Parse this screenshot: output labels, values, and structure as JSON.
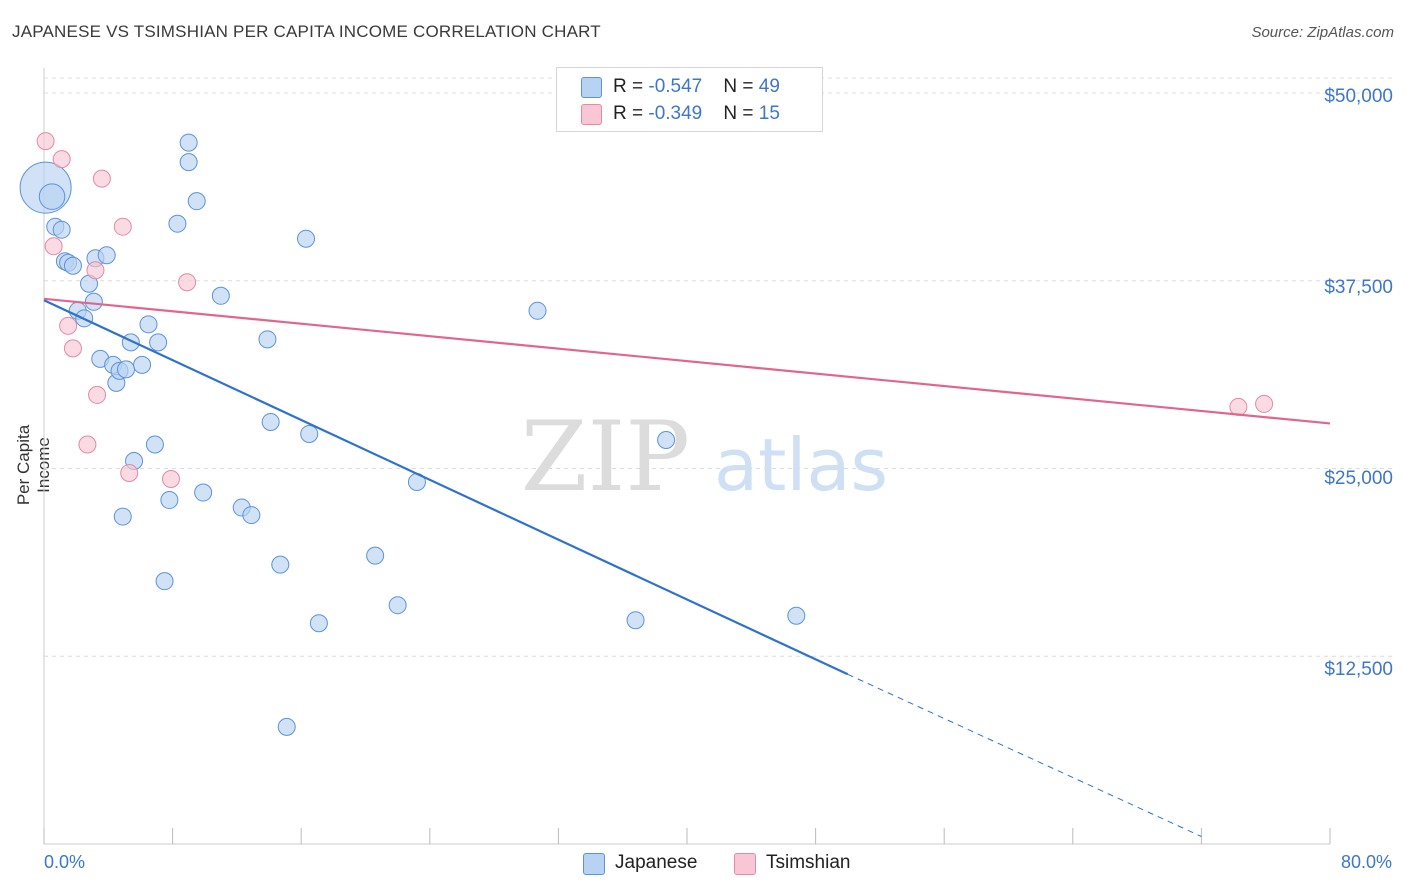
{
  "title": "JAPANESE VS TSIMSHIAN PER CAPITA INCOME CORRELATION CHART",
  "source": "Source: ZipAtlas.com",
  "watermark": {
    "part1": "ZIP",
    "part2": "atlas"
  },
  "colors": {
    "japanese_fill": "#b8d2f3",
    "japanese_stroke": "#5b93d8",
    "japanese_line": "#2f72cc",
    "tsimshian_fill": "#f8c6d4",
    "tsimshian_stroke": "#e38aa5",
    "tsimshian_line": "#e0668e",
    "tick_text": "#3d77c9",
    "grid": "#dcdcdc"
  },
  "legend": {
    "rows": [
      {
        "r_label": "R = ",
        "r_value": "-0.547",
        "n_label": "N = ",
        "n_value": "49"
      },
      {
        "r_label": "R = ",
        "r_value": "-0.349",
        "n_label": "N = ",
        "n_value": "15"
      }
    ]
  },
  "bottom_legend": {
    "japanese": "Japanese",
    "tsimshian": "Tsimshian"
  },
  "chart_data": {
    "type": "scatter",
    "title": "JAPANESE VS TSIMSHIAN PER CAPITA INCOME CORRELATION CHART",
    "xlabel": "",
    "ylabel": "Per Capita Income",
    "xlim": [
      0,
      80
    ],
    "ylim": [
      0,
      51000
    ],
    "x_tick_labels": [
      "0.0%",
      "80.0%"
    ],
    "y_ticks": [
      12500,
      25000,
      37500,
      50000
    ],
    "y_tick_labels": [
      "$12,500",
      "$25,000",
      "$37,500",
      "$50,000"
    ],
    "grid": true,
    "legend_placement": "top-center",
    "series": [
      {
        "name": "Japanese",
        "r": -0.547,
        "n": 49,
        "points": [
          [
            0.1,
            43700,
            3
          ],
          [
            0.5,
            43100,
            1.5
          ],
          [
            0.7,
            41100,
            1
          ],
          [
            1.1,
            40900,
            1
          ],
          [
            1.3,
            38800,
            1
          ],
          [
            1.5,
            38700,
            1
          ],
          [
            1.8,
            38500,
            1
          ],
          [
            2.1,
            35500,
            1
          ],
          [
            2.5,
            35000,
            1
          ],
          [
            2.8,
            37300,
            1
          ],
          [
            3.1,
            36100,
            1
          ],
          [
            3.2,
            39000,
            1
          ],
          [
            3.9,
            39200,
            1
          ],
          [
            3.5,
            32300,
            1
          ],
          [
            4.3,
            31900,
            1
          ],
          [
            4.5,
            30700,
            1
          ],
          [
            4.7,
            31500,
            1
          ],
          [
            5.1,
            31600,
            1
          ],
          [
            5.4,
            33400,
            1
          ],
          [
            5.6,
            25500,
            1
          ],
          [
            6.1,
            31900,
            1
          ],
          [
            6.5,
            34600,
            1
          ],
          [
            6.9,
            26600,
            1
          ],
          [
            7.1,
            33400,
            1
          ],
          [
            4.9,
            21800,
            1
          ],
          [
            7.5,
            17500,
            1
          ],
          [
            7.8,
            22900,
            1
          ],
          [
            8.3,
            41300,
            1
          ],
          [
            9.0,
            46700,
            1
          ],
          [
            9.0,
            45400,
            1
          ],
          [
            9.5,
            42800,
            1
          ],
          [
            9.9,
            23400,
            1
          ],
          [
            11.0,
            36500,
            1
          ],
          [
            12.3,
            22400,
            1
          ],
          [
            12.9,
            21900,
            1
          ],
          [
            13.9,
            33600,
            1
          ],
          [
            14.1,
            28100,
            1
          ],
          [
            14.7,
            18600,
            1
          ],
          [
            15.1,
            7800,
            1
          ],
          [
            16.3,
            40300,
            1
          ],
          [
            16.5,
            27300,
            1
          ],
          [
            17.1,
            14700,
            1
          ],
          [
            20.6,
            19200,
            1
          ],
          [
            22.0,
            15900,
            1
          ],
          [
            23.2,
            24100,
            1
          ],
          [
            30.7,
            35500,
            1
          ],
          [
            36.8,
            14900,
            1
          ],
          [
            38.7,
            26900,
            1
          ],
          [
            46.8,
            15200,
            1
          ]
        ],
        "trend": {
          "x_start": 0,
          "y_start": 36200,
          "x_end": 50.0,
          "y_end": 11300,
          "dashed_to_x": 72.0,
          "dashed_to_y": 500
        }
      },
      {
        "name": "Tsimshian",
        "r": -0.349,
        "n": 15,
        "points": [
          [
            0.1,
            46800,
            1
          ],
          [
            0.6,
            39800,
            1
          ],
          [
            1.1,
            45600,
            1
          ],
          [
            1.5,
            34500,
            1
          ],
          [
            1.8,
            33000,
            1
          ],
          [
            2.7,
            26600,
            1
          ],
          [
            3.2,
            38200,
            1
          ],
          [
            3.3,
            29900,
            1
          ],
          [
            3.6,
            44300,
            1
          ],
          [
            4.9,
            41100,
            1
          ],
          [
            5.3,
            24700,
            1
          ],
          [
            7.9,
            24300,
            1
          ],
          [
            8.9,
            37400,
            1
          ],
          [
            74.3,
            29100,
            1
          ],
          [
            75.9,
            29300,
            1
          ]
        ],
        "trend": {
          "x_start": 0,
          "y_start": 36300,
          "x_end": 80,
          "y_end": 28000
        }
      }
    ]
  }
}
